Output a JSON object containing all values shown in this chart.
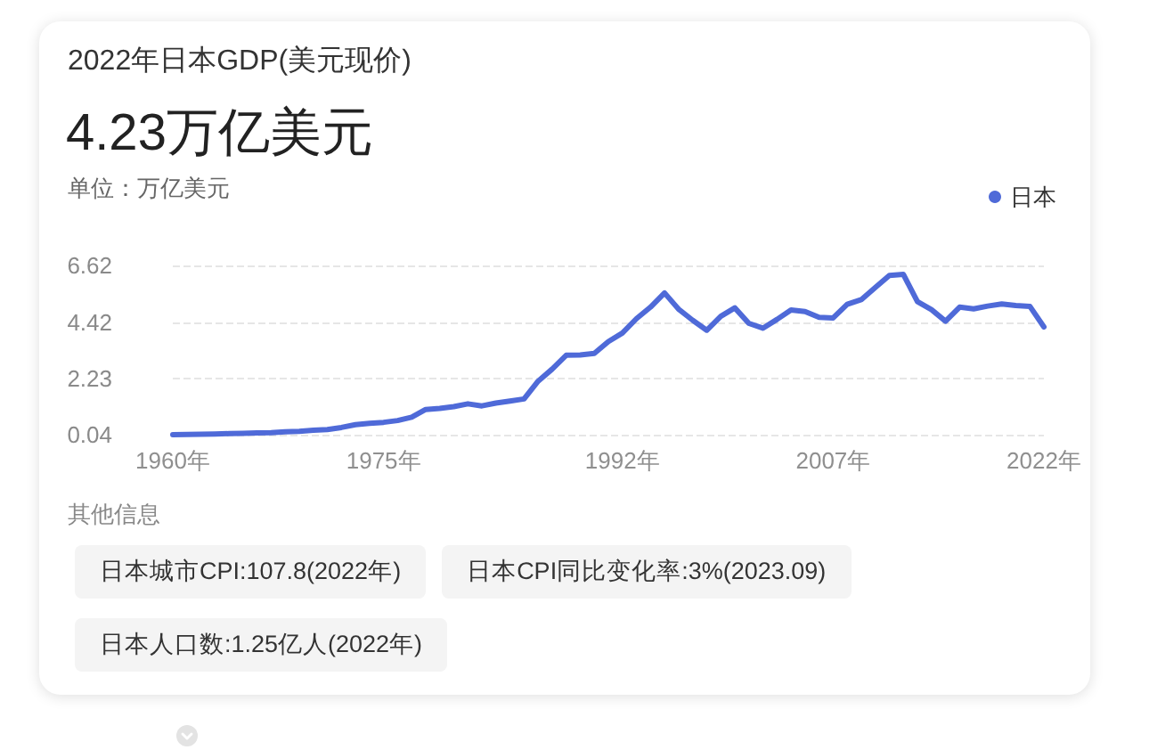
{
  "chart_data": {
    "type": "line",
    "title": "2022年日本GDP(美元现价)",
    "subtitle": "4.23万亿美元",
    "ylabel": "单位：万亿美元",
    "x": [
      1960,
      1961,
      1962,
      1963,
      1964,
      1965,
      1966,
      1967,
      1968,
      1969,
      1970,
      1971,
      1972,
      1973,
      1974,
      1975,
      1976,
      1977,
      1978,
      1979,
      1980,
      1981,
      1982,
      1983,
      1984,
      1985,
      1986,
      1987,
      1988,
      1989,
      1990,
      1991,
      1992,
      1993,
      1994,
      1995,
      1996,
      1997,
      1998,
      1999,
      2000,
      2001,
      2002,
      2003,
      2004,
      2005,
      2006,
      2007,
      2008,
      2009,
      2010,
      2011,
      2012,
      2013,
      2014,
      2015,
      2016,
      2017,
      2018,
      2019,
      2020,
      2021,
      2022
    ],
    "series": [
      {
        "name": "日本",
        "color": "#4f6ad8",
        "values": [
          0.04,
          0.05,
          0.06,
          0.07,
          0.08,
          0.09,
          0.11,
          0.12,
          0.15,
          0.17,
          0.21,
          0.24,
          0.32,
          0.43,
          0.48,
          0.52,
          0.59,
          0.72,
          1.02,
          1.06,
          1.13,
          1.24,
          1.16,
          1.27,
          1.35,
          1.43,
          2.12,
          2.59,
          3.13,
          3.14,
          3.2,
          3.66,
          3.99,
          4.55,
          5.0,
          5.55,
          4.92,
          4.49,
          4.1,
          4.64,
          4.97,
          4.37,
          4.18,
          4.52,
          4.89,
          4.83,
          4.6,
          4.58,
          5.11,
          5.29,
          5.76,
          6.23,
          6.27,
          5.21,
          4.9,
          4.45,
          5.0,
          4.93,
          5.04,
          5.12,
          5.06,
          5.03,
          4.23
        ]
      }
    ],
    "xlim": [
      1960,
      2022
    ],
    "xticks": [
      {
        "value": 1960,
        "label": "1960年"
      },
      {
        "value": 1975,
        "label": "1975年"
      },
      {
        "value": 1992,
        "label": "1992年"
      },
      {
        "value": 2007,
        "label": "2007年"
      },
      {
        "value": 2022,
        "label": "2022年"
      }
    ],
    "ylim": [
      0.04,
      6.62
    ],
    "yticks": [
      0.04,
      2.23,
      4.42,
      6.62
    ],
    "grid": "y",
    "legend": "top right",
    "line_style": "solid",
    "annotations": [
      "其他信息",
      "日本城市CPI:107.8(2022年)",
      "日本CPI同比变化率:3%(2023.09)",
      "日本人口数:1.25亿人(2022年)"
    ]
  }
}
